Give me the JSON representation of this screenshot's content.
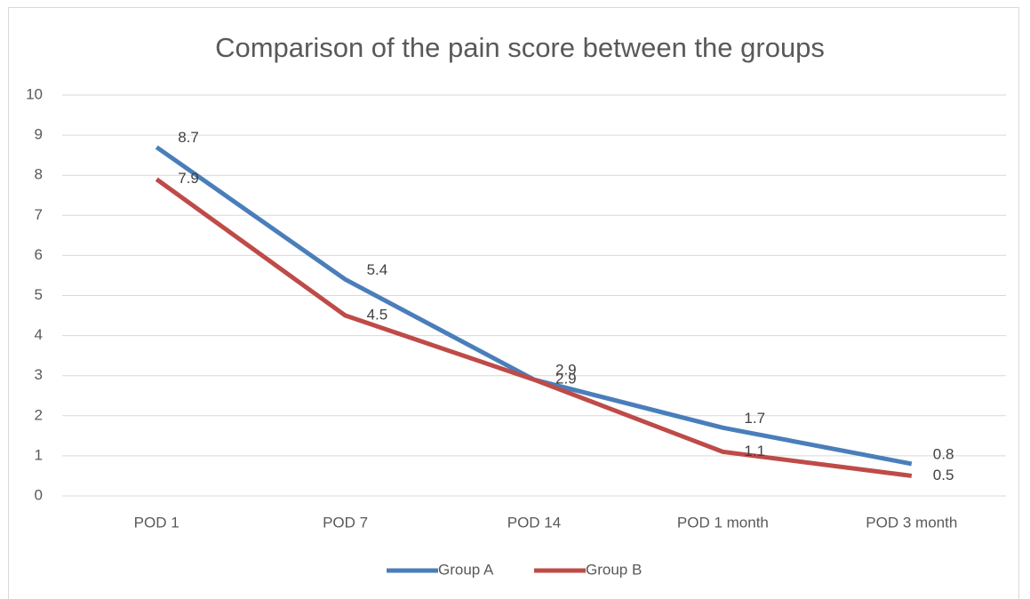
{
  "chart_data": {
    "type": "line",
    "title": "Comparison of the pain score between the groups",
    "categories": [
      "POD 1",
      "POD 7",
      "POD 14",
      "POD 1 month",
      "POD 3 month"
    ],
    "series": [
      {
        "name": "Group A",
        "color": "#4a7ebb",
        "values": [
          8.7,
          5.4,
          2.9,
          1.7,
          0.8
        ]
      },
      {
        "name": "Group B",
        "color": "#be4b48",
        "values": [
          7.9,
          4.5,
          2.9,
          1.1,
          0.5
        ]
      }
    ],
    "ylim": [
      0,
      10
    ],
    "yticks": [
      0,
      1,
      2,
      3,
      4,
      5,
      6,
      7,
      8,
      9,
      10
    ],
    "grid": true,
    "legend": "bottom"
  }
}
